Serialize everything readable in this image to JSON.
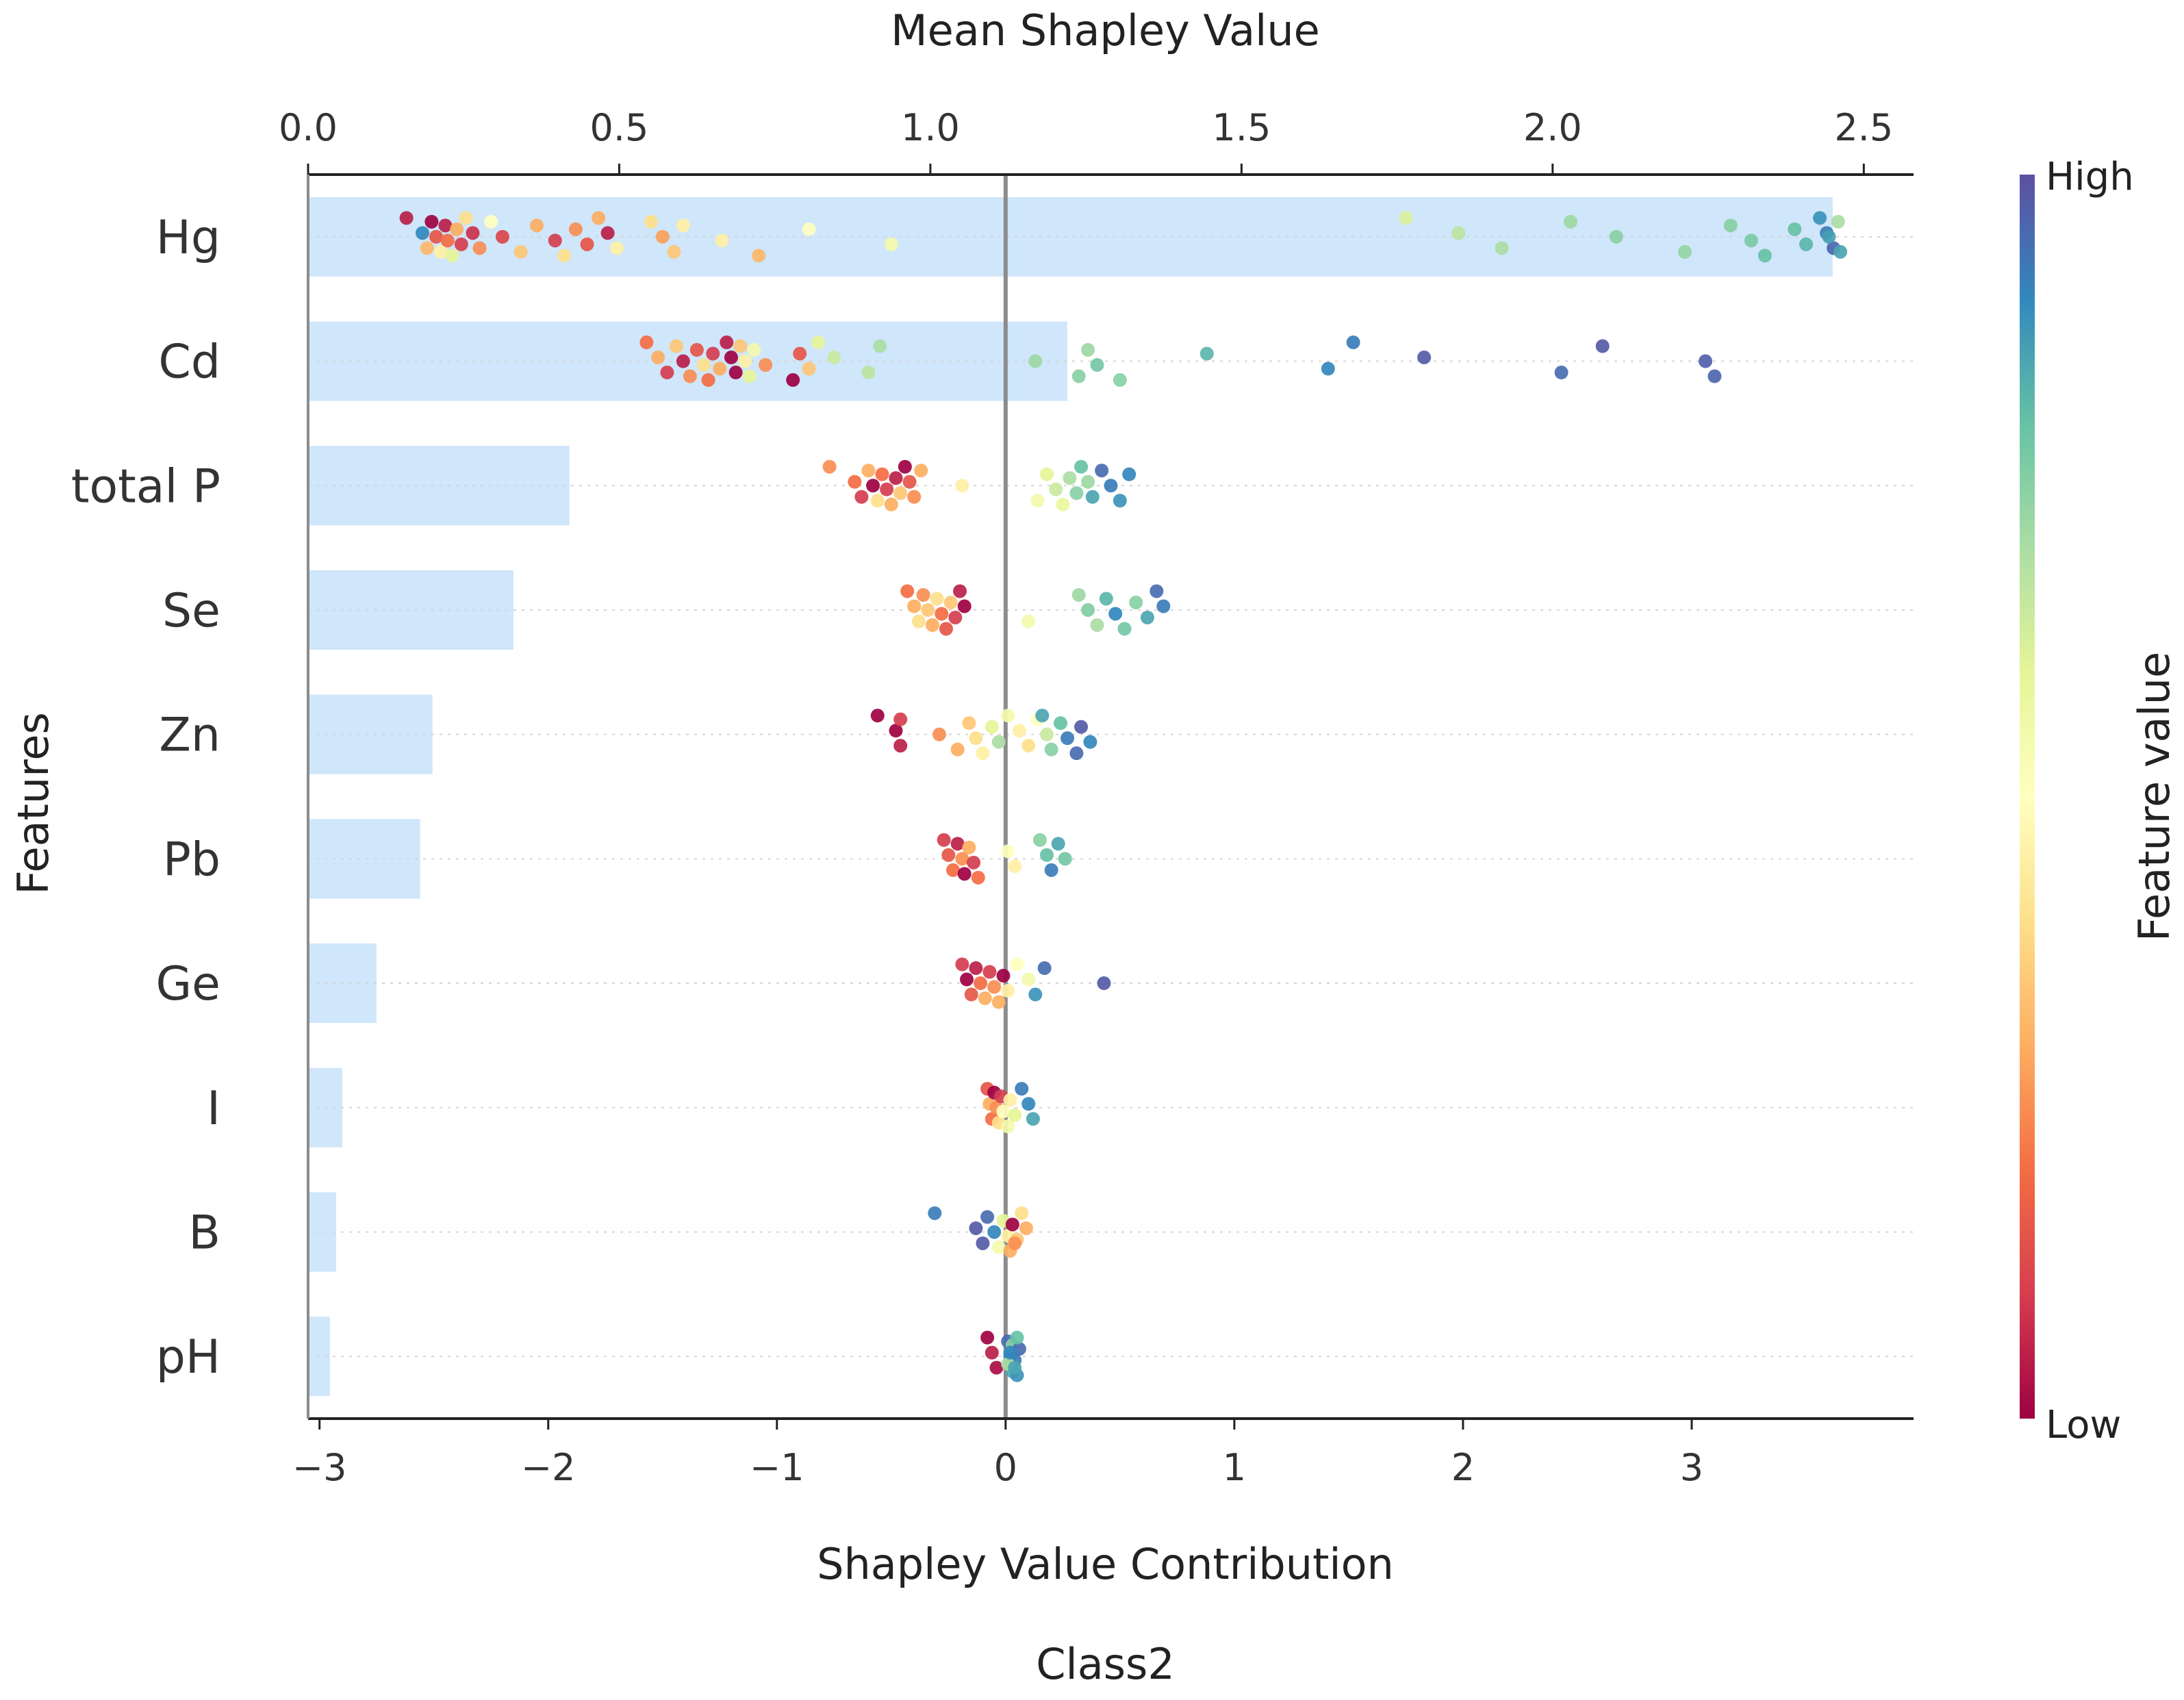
{
  "chart_data": {
    "type": "scatter",
    "subtitle": "Class2",
    "ylabel": "Features",
    "top_axis": {
      "label": "Mean Shapley Value",
      "range": [
        0,
        2.58
      ],
      "ticks": [
        0.0,
        0.5,
        1.0,
        1.5,
        2.0,
        2.5
      ],
      "tick_labels": [
        "0.0",
        "0.5",
        "1.0",
        "1.5",
        "2.0",
        "2.5"
      ]
    },
    "bottom_axis": {
      "label": "Shapley Value Contribution",
      "range": [
        -3.05,
        3.97
      ],
      "ticks": [
        -3,
        -2,
        -1,
        0,
        1,
        2,
        3
      ],
      "tick_labels": [
        "−3",
        "−2",
        "−1",
        "0",
        "1",
        "2",
        "3"
      ]
    },
    "colorbar": {
      "label": "Feature value",
      "high_label": "High",
      "low_label": "Low",
      "colors": [
        "#9e0142",
        "#d53e4f",
        "#f46d43",
        "#fdae61",
        "#fee08b",
        "#ffffbf",
        "#e6f598",
        "#abdda4",
        "#66c2a5",
        "#3288bd",
        "#5e4fa2"
      ]
    },
    "bar_color": "#cfe6fb",
    "zero_line_color": "#8c8c8c",
    "features": [
      {
        "name": "Hg",
        "mean_shap": 2.45,
        "points": [
          [
            -2.62,
            0.05
          ],
          [
            -2.55,
            0.9
          ],
          [
            -2.53,
            0.32
          ],
          [
            -2.51,
            0.0
          ],
          [
            -2.49,
            0.15
          ],
          [
            -2.47,
            0.45
          ],
          [
            -2.45,
            0.05
          ],
          [
            -2.44,
            0.2
          ],
          [
            -2.42,
            0.6
          ],
          [
            -2.4,
            0.3
          ],
          [
            -2.38,
            0.1
          ],
          [
            -2.36,
            0.4
          ],
          [
            -2.33,
            0.08
          ],
          [
            -2.3,
            0.25
          ],
          [
            -2.25,
            0.5
          ],
          [
            -2.2,
            0.12
          ],
          [
            -2.12,
            0.35
          ],
          [
            -2.05,
            0.3
          ],
          [
            -1.97,
            0.1
          ],
          [
            -1.93,
            0.4
          ],
          [
            -1.88,
            0.25
          ],
          [
            -1.83,
            0.15
          ],
          [
            -1.78,
            0.3
          ],
          [
            -1.74,
            0.05
          ],
          [
            -1.7,
            0.45
          ],
          [
            -1.55,
            0.4
          ],
          [
            -1.5,
            0.28
          ],
          [
            -1.45,
            0.35
          ],
          [
            -1.41,
            0.45
          ],
          [
            -1.24,
            0.45
          ],
          [
            -1.08,
            0.32
          ],
          [
            -0.86,
            0.5
          ],
          [
            -0.5,
            0.55
          ],
          [
            1.75,
            0.62
          ],
          [
            1.98,
            0.67
          ],
          [
            2.17,
            0.7
          ],
          [
            2.47,
            0.72
          ],
          [
            2.67,
            0.75
          ],
          [
            2.97,
            0.73
          ],
          [
            3.17,
            0.75
          ],
          [
            3.26,
            0.77
          ],
          [
            3.32,
            0.8
          ],
          [
            3.45,
            0.8
          ],
          [
            3.5,
            0.82
          ],
          [
            3.56,
            0.88
          ],
          [
            3.59,
            0.92
          ],
          [
            3.62,
            0.96
          ],
          [
            3.64,
            0.7
          ],
          [
            3.6,
            0.86
          ],
          [
            3.65,
            0.85
          ]
        ]
      },
      {
        "name": "Cd",
        "mean_shap": 1.22,
        "points": [
          [
            -1.57,
            0.2
          ],
          [
            -1.52,
            0.3
          ],
          [
            -1.48,
            0.1
          ],
          [
            -1.44,
            0.35
          ],
          [
            -1.41,
            0.05
          ],
          [
            -1.38,
            0.25
          ],
          [
            -1.35,
            0.15
          ],
          [
            -1.32,
            0.4
          ],
          [
            -1.3,
            0.2
          ],
          [
            -1.28,
            0.1
          ],
          [
            -1.25,
            0.3
          ],
          [
            -1.22,
            0.05
          ],
          [
            -1.2,
            0.0
          ],
          [
            -1.18,
            0.0
          ],
          [
            -1.16,
            0.35
          ],
          [
            -1.14,
            0.45
          ],
          [
            -1.12,
            0.6
          ],
          [
            -1.1,
            0.55
          ],
          [
            -1.05,
            0.25
          ],
          [
            -0.93,
            0.0
          ],
          [
            -0.9,
            0.15
          ],
          [
            -0.86,
            0.35
          ],
          [
            -0.82,
            0.6
          ],
          [
            -0.75,
            0.65
          ],
          [
            -0.6,
            0.67
          ],
          [
            -0.55,
            0.7
          ],
          [
            0.13,
            0.72
          ],
          [
            0.32,
            0.75
          ],
          [
            0.36,
            0.72
          ],
          [
            0.4,
            0.78
          ],
          [
            0.5,
            0.75
          ],
          [
            0.88,
            0.82
          ],
          [
            1.41,
            0.9
          ],
          [
            1.52,
            0.92
          ],
          [
            1.83,
            0.98
          ],
          [
            2.43,
            0.95
          ],
          [
            2.61,
            0.98
          ],
          [
            3.06,
            0.97
          ],
          [
            3.1,
            0.96
          ]
        ]
      },
      {
        "name": "total P",
        "mean_shap": 0.42,
        "points": [
          [
            -0.77,
            0.25
          ],
          [
            -0.66,
            0.2
          ],
          [
            -0.63,
            0.1
          ],
          [
            -0.6,
            0.3
          ],
          [
            -0.58,
            0.0
          ],
          [
            -0.56,
            0.4
          ],
          [
            -0.54,
            0.2
          ],
          [
            -0.52,
            0.1
          ],
          [
            -0.5,
            0.3
          ],
          [
            -0.48,
            0.05
          ],
          [
            -0.46,
            0.35
          ],
          [
            -0.44,
            0.0
          ],
          [
            -0.42,
            0.15
          ],
          [
            -0.4,
            0.25
          ],
          [
            -0.37,
            0.3
          ],
          [
            -0.19,
            0.45
          ],
          [
            0.14,
            0.55
          ],
          [
            0.18,
            0.6
          ],
          [
            0.22,
            0.65
          ],
          [
            0.25,
            0.58
          ],
          [
            0.28,
            0.7
          ],
          [
            0.31,
            0.75
          ],
          [
            0.33,
            0.8
          ],
          [
            0.36,
            0.72
          ],
          [
            0.38,
            0.85
          ],
          [
            0.42,
            0.95
          ],
          [
            0.46,
            0.92
          ],
          [
            0.5,
            0.88
          ],
          [
            0.54,
            0.9
          ]
        ]
      },
      {
        "name": "Se",
        "mean_shap": 0.33,
        "points": [
          [
            -0.43,
            0.2
          ],
          [
            -0.4,
            0.3
          ],
          [
            -0.38,
            0.4
          ],
          [
            -0.36,
            0.25
          ],
          [
            -0.34,
            0.35
          ],
          [
            -0.32,
            0.3
          ],
          [
            -0.3,
            0.4
          ],
          [
            -0.28,
            0.2
          ],
          [
            -0.26,
            0.15
          ],
          [
            -0.24,
            0.35
          ],
          [
            -0.22,
            0.1
          ],
          [
            -0.2,
            0.05
          ],
          [
            -0.18,
            0.0
          ],
          [
            0.1,
            0.55
          ],
          [
            0.32,
            0.72
          ],
          [
            0.36,
            0.76
          ],
          [
            0.4,
            0.7
          ],
          [
            0.44,
            0.82
          ],
          [
            0.48,
            0.9
          ],
          [
            0.52,
            0.78
          ],
          [
            0.57,
            0.75
          ],
          [
            0.62,
            0.85
          ],
          [
            0.66,
            0.95
          ],
          [
            0.69,
            0.92
          ]
        ]
      },
      {
        "name": "Zn",
        "mean_shap": 0.2,
        "points": [
          [
            -0.56,
            0.0
          ],
          [
            -0.48,
            0.0
          ],
          [
            -0.46,
            0.05
          ],
          [
            -0.46,
            0.1
          ],
          [
            -0.29,
            0.25
          ],
          [
            -0.21,
            0.3
          ],
          [
            -0.16,
            0.35
          ],
          [
            -0.13,
            0.4
          ],
          [
            -0.1,
            0.45
          ],
          [
            -0.06,
            0.6
          ],
          [
            -0.03,
            0.7
          ],
          [
            0.01,
            0.55
          ],
          [
            0.06,
            0.45
          ],
          [
            0.1,
            0.4
          ],
          [
            0.14,
            0.5
          ],
          [
            0.18,
            0.65
          ],
          [
            0.2,
            0.75
          ],
          [
            0.24,
            0.8
          ],
          [
            0.27,
            0.92
          ],
          [
            0.31,
            0.95
          ],
          [
            0.33,
            0.98
          ],
          [
            0.37,
            0.9
          ],
          [
            0.16,
            0.85
          ]
        ]
      },
      {
        "name": "Pb",
        "mean_shap": 0.18,
        "points": [
          [
            -0.27,
            0.1
          ],
          [
            -0.25,
            0.15
          ],
          [
            -0.23,
            0.2
          ],
          [
            -0.21,
            0.05
          ],
          [
            -0.19,
            0.25
          ],
          [
            -0.18,
            0.0
          ],
          [
            -0.16,
            0.3
          ],
          [
            -0.14,
            0.1
          ],
          [
            -0.12,
            0.2
          ],
          [
            0.01,
            0.5
          ],
          [
            0.04,
            0.45
          ],
          [
            0.15,
            0.75
          ],
          [
            0.18,
            0.8
          ],
          [
            0.2,
            0.92
          ],
          [
            0.23,
            0.85
          ],
          [
            0.26,
            0.78
          ]
        ]
      },
      {
        "name": "Ge",
        "mean_shap": 0.11,
        "points": [
          [
            -0.19,
            0.1
          ],
          [
            -0.17,
            0.0
          ],
          [
            -0.15,
            0.15
          ],
          [
            -0.13,
            0.05
          ],
          [
            -0.11,
            0.2
          ],
          [
            -0.09,
            0.3
          ],
          [
            -0.07,
            0.1
          ],
          [
            -0.05,
            0.25
          ],
          [
            -0.03,
            0.3
          ],
          [
            -0.01,
            0.0
          ],
          [
            0.01,
            0.45
          ],
          [
            0.05,
            0.5
          ],
          [
            0.1,
            0.55
          ],
          [
            0.13,
            0.88
          ],
          [
            0.17,
            0.95
          ],
          [
            0.43,
            0.98
          ]
        ]
      },
      {
        "name": "I",
        "mean_shap": 0.055,
        "points": [
          [
            -0.08,
            0.15
          ],
          [
            -0.07,
            0.3
          ],
          [
            -0.06,
            0.2
          ],
          [
            -0.05,
            0.0
          ],
          [
            -0.04,
            0.25
          ],
          [
            -0.03,
            0.4
          ],
          [
            -0.02,
            0.1
          ],
          [
            -0.01,
            0.5
          ],
          [
            0.01,
            0.55
          ],
          [
            0.02,
            0.45
          ],
          [
            0.04,
            0.6
          ],
          [
            0.07,
            0.92
          ],
          [
            0.1,
            0.9
          ],
          [
            0.12,
            0.85
          ]
        ]
      },
      {
        "name": "B",
        "mean_shap": 0.045,
        "points": [
          [
            -0.31,
            0.92
          ],
          [
            -0.13,
            0.98
          ],
          [
            -0.1,
            0.98
          ],
          [
            -0.08,
            0.95
          ],
          [
            -0.05,
            0.9
          ],
          [
            -0.03,
            0.55
          ],
          [
            -0.01,
            0.6
          ],
          [
            0.01,
            0.45
          ],
          [
            0.02,
            0.3
          ],
          [
            0.03,
            0.0
          ],
          [
            0.05,
            0.35
          ],
          [
            0.07,
            0.4
          ],
          [
            0.09,
            0.3
          ],
          [
            0.04,
            0.25
          ]
        ]
      },
      {
        "name": "pH",
        "mean_shap": 0.035,
        "points": [
          [
            -0.08,
            0.0
          ],
          [
            -0.06,
            0.05
          ],
          [
            -0.04,
            0.02
          ],
          [
            0.01,
            0.95
          ],
          [
            0.02,
            0.9
          ],
          [
            0.03,
            0.85
          ],
          [
            0.03,
            0.75
          ],
          [
            0.04,
            0.92
          ],
          [
            0.05,
            0.88
          ],
          [
            0.06,
            0.95
          ],
          [
            0.01,
            0.7
          ],
          [
            0.05,
            0.8
          ],
          [
            0.02,
            0.9
          ],
          [
            0.04,
            0.85
          ]
        ]
      }
    ]
  }
}
